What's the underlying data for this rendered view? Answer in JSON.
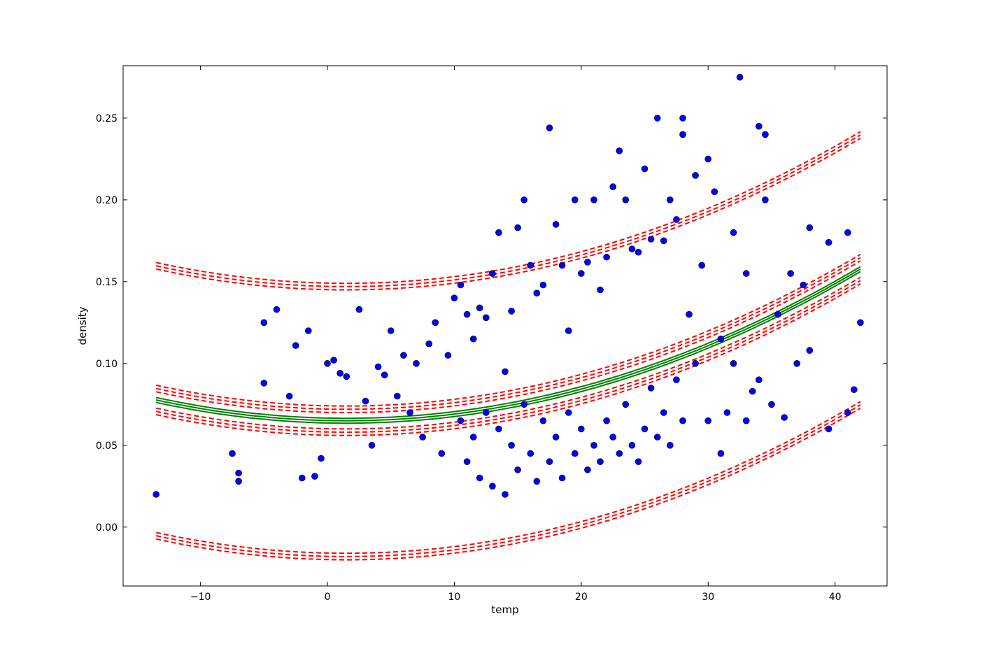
{
  "chart_data": {
    "type": "scatter",
    "xlabel": "temp",
    "ylabel": "density",
    "xlim": [
      -16.1,
      44.1
    ],
    "ylim": [
      -0.036,
      0.282
    ],
    "xticks": [
      -10,
      0,
      10,
      20,
      30,
      40
    ],
    "yticks": [
      0.0,
      0.05,
      0.1,
      0.15,
      0.2,
      0.25
    ],
    "xtick_labels": [
      "−10",
      "0",
      "10",
      "20",
      "30",
      "40"
    ],
    "ytick_labels": [
      "0.00",
      "0.05",
      "0.10",
      "0.15",
      "0.20",
      "0.25"
    ],
    "grid": false,
    "legend": "none",
    "colors": {
      "points": "#0000ff",
      "fit": "#008000",
      "bands": "#ff0000"
    },
    "fit_curve": {
      "style": "solid",
      "a": 5.65e-05,
      "h": 1.5,
      "k": 0.065,
      "x_range": [
        -13.5,
        42
      ]
    },
    "band_curves": [
      {
        "name": "upper prediction",
        "style": "dashed",
        "a": 5.65e-05,
        "h": 1.5,
        "k": 0.147,
        "x_range": [
          -13.5,
          42
        ]
      },
      {
        "name": "upper confidence",
        "style": "dashed",
        "a": 5.65e-05,
        "h": 1.5,
        "k": 0.072,
        "x_range": [
          -13.5,
          42
        ]
      },
      {
        "name": "lower confidence",
        "style": "dashed",
        "a": 5.65e-05,
        "h": 1.5,
        "k": 0.058,
        "x_range": [
          -13.5,
          42
        ]
      },
      {
        "name": "lower prediction",
        "style": "dashed",
        "a": 5.65e-05,
        "h": 1.5,
        "k": -0.018,
        "x_range": [
          -13.5,
          42
        ]
      }
    ],
    "points": [
      [
        -13.5,
        0.02
      ],
      [
        -7,
        0.028
      ],
      [
        -7,
        0.033
      ],
      [
        -7.5,
        0.045
      ],
      [
        -5,
        0.125
      ],
      [
        -5,
        0.088
      ],
      [
        -4,
        0.133
      ],
      [
        -3,
        0.08
      ],
      [
        -2.5,
        0.111
      ],
      [
        -2,
        0.03
      ],
      [
        -1.5,
        0.12
      ],
      [
        -1,
        0.031
      ],
      [
        -0.5,
        0.042
      ],
      [
        0,
        0.1
      ],
      [
        0.5,
        0.102
      ],
      [
        1,
        0.094
      ],
      [
        1.5,
        0.092
      ],
      [
        2.5,
        0.133
      ],
      [
        3,
        0.077
      ],
      [
        3.5,
        0.05
      ],
      [
        4,
        0.098
      ],
      [
        4.5,
        0.093
      ],
      [
        5,
        0.12
      ],
      [
        5.5,
        0.08
      ],
      [
        6,
        0.105
      ],
      [
        6.5,
        0.07
      ],
      [
        7,
        0.1
      ],
      [
        7.5,
        0.055
      ],
      [
        8,
        0.112
      ],
      [
        8.5,
        0.125
      ],
      [
        9,
        0.045
      ],
      [
        9.5,
        0.105
      ],
      [
        10,
        0.14
      ],
      [
        10.5,
        0.148
      ],
      [
        11,
        0.13
      ],
      [
        11.5,
        0.115
      ],
      [
        12,
        0.134
      ],
      [
        12.5,
        0.128
      ],
      [
        13,
        0.155
      ],
      [
        13.5,
        0.18
      ],
      [
        14,
        0.095
      ],
      [
        14.5,
        0.132
      ],
      [
        15,
        0.183
      ],
      [
        15.5,
        0.2
      ],
      [
        16,
        0.16
      ],
      [
        16.5,
        0.143
      ],
      [
        17,
        0.148
      ],
      [
        17.5,
        0.244
      ],
      [
        18,
        0.185
      ],
      [
        18.5,
        0.16
      ],
      [
        19,
        0.12
      ],
      [
        19.5,
        0.2
      ],
      [
        20,
        0.155
      ],
      [
        20.5,
        0.162
      ],
      [
        21,
        0.2
      ],
      [
        21.5,
        0.145
      ],
      [
        22,
        0.165
      ],
      [
        22.5,
        0.208
      ],
      [
        23,
        0.23
      ],
      [
        23.5,
        0.2
      ],
      [
        24,
        0.17
      ],
      [
        24.5,
        0.168
      ],
      [
        25,
        0.219
      ],
      [
        25.5,
        0.176
      ],
      [
        26,
        0.25
      ],
      [
        26.5,
        0.175
      ],
      [
        27,
        0.2
      ],
      [
        27.5,
        0.188
      ],
      [
        28,
        0.25
      ],
      [
        28,
        0.24
      ],
      [
        28.5,
        0.13
      ],
      [
        29,
        0.215
      ],
      [
        29.5,
        0.16
      ],
      [
        30,
        0.225
      ],
      [
        30.5,
        0.205
      ],
      [
        31,
        0.115
      ],
      [
        31.5,
        0.07
      ],
      [
        32,
        0.18
      ],
      [
        32.5,
        0.275
      ],
      [
        33,
        0.155
      ],
      [
        33.5,
        0.083
      ],
      [
        34,
        0.245
      ],
      [
        34.5,
        0.24
      ],
      [
        34.5,
        0.2
      ],
      [
        35,
        0.075
      ],
      [
        35.5,
        0.13
      ],
      [
        36,
        0.067
      ],
      [
        36.5,
        0.155
      ],
      [
        37,
        0.1
      ],
      [
        37.5,
        0.148
      ],
      [
        38,
        0.183
      ],
      [
        38,
        0.108
      ],
      [
        39.5,
        0.06
      ],
      [
        39.5,
        0.174
      ],
      [
        41,
        0.18
      ],
      [
        41,
        0.07
      ],
      [
        41.5,
        0.084
      ],
      [
        42,
        0.125
      ],
      [
        10.5,
        0.065
      ],
      [
        11,
        0.04
      ],
      [
        11.5,
        0.055
      ],
      [
        12,
        0.03
      ],
      [
        12.5,
        0.07
      ],
      [
        13,
        0.025
      ],
      [
        13.5,
        0.06
      ],
      [
        14,
        0.02
      ],
      [
        14.5,
        0.05
      ],
      [
        15,
        0.035
      ],
      [
        15.5,
        0.075
      ],
      [
        16,
        0.045
      ],
      [
        16.5,
        0.028
      ],
      [
        17,
        0.065
      ],
      [
        17.5,
        0.04
      ],
      [
        18,
        0.055
      ],
      [
        18.5,
        0.03
      ],
      [
        19,
        0.07
      ],
      [
        19.5,
        0.045
      ],
      [
        20,
        0.06
      ],
      [
        20.5,
        0.035
      ],
      [
        21,
        0.05
      ],
      [
        21.5,
        0.04
      ],
      [
        22,
        0.065
      ],
      [
        22.5,
        0.055
      ],
      [
        23,
        0.045
      ],
      [
        23.5,
        0.075
      ],
      [
        24,
        0.05
      ],
      [
        24.5,
        0.04
      ],
      [
        25,
        0.06
      ],
      [
        25.5,
        0.085
      ],
      [
        26,
        0.055
      ],
      [
        26.5,
        0.07
      ],
      [
        27,
        0.05
      ],
      [
        27.5,
        0.09
      ],
      [
        28,
        0.065
      ],
      [
        29,
        0.1
      ],
      [
        30,
        0.065
      ],
      [
        31,
        0.045
      ],
      [
        32,
        0.1
      ],
      [
        33,
        0.065
      ],
      [
        34,
        0.09
      ]
    ]
  }
}
